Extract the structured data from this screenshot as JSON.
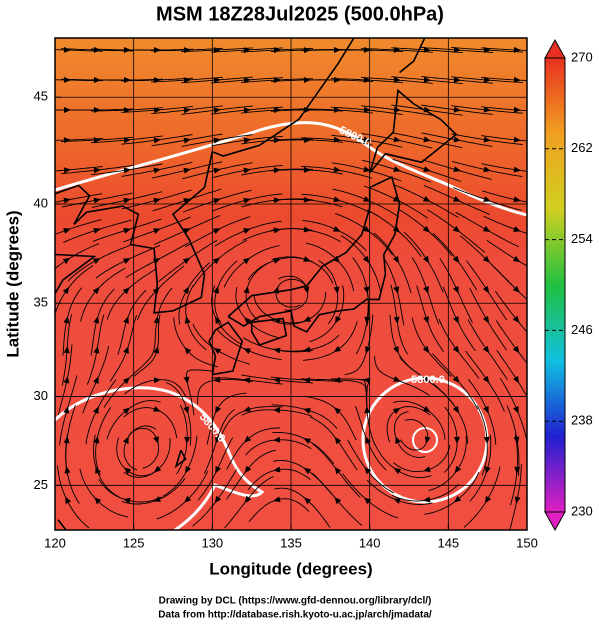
{
  "title": "MSM 18Z28Jul2025 (500.0hPa)",
  "map": {
    "xlim": [
      120,
      150
    ],
    "ylim": [
      22.4,
      47.6
    ],
    "projection": "mercator",
    "xticks": [
      120,
      125,
      130,
      135,
      140,
      145,
      150
    ],
    "yticks": [
      25,
      30,
      35,
      40,
      45
    ],
    "grid": true,
    "xlabel": "Longitude (degrees)",
    "ylabel": "Latitude  (degrees)",
    "contour_labels": [
      "5800.0",
      "5800.0",
      "5800.0"
    ]
  },
  "colorbar": {
    "lim": [
      230,
      270
    ],
    "ticks": [
      230,
      238,
      246,
      254,
      262,
      270
    ],
    "colors": [
      "#e020c0",
      "#2020d0",
      "#10c0e0",
      "#20c040",
      "#d0d020",
      "#f0a020",
      "#e83020"
    ]
  },
  "footer": [
    "Drawing by DCL (https://www.gfd-dennou.org/library/dcl/)",
    "Data from http://database.rish.kyoto-u.ac.jp/arch/jmadata/"
  ]
}
